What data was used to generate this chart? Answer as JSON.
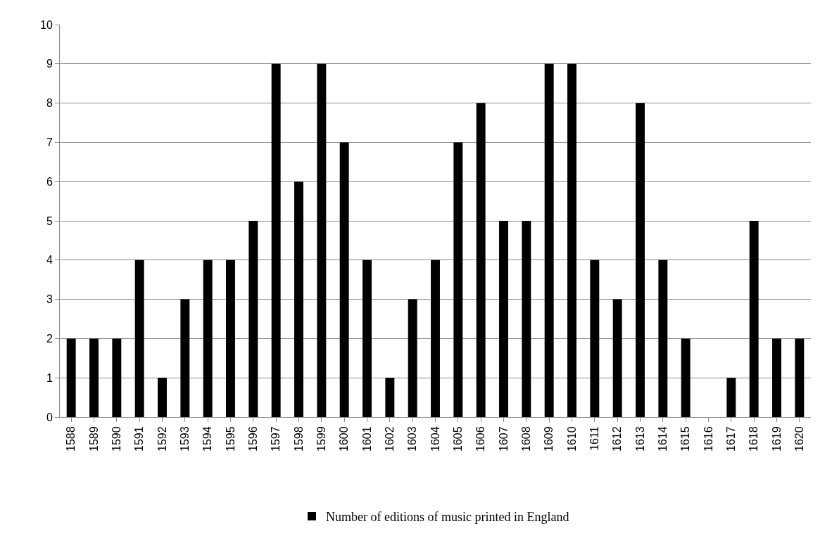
{
  "chart_data": {
    "type": "bar",
    "categories": [
      "1588",
      "1589",
      "1590",
      "1591",
      "1592",
      "1593",
      "1594",
      "1595",
      "1596",
      "1597",
      "1598",
      "1599",
      "1600",
      "1601",
      "1602",
      "1603",
      "1604",
      "1605",
      "1606",
      "1607",
      "1608",
      "1609",
      "1610",
      "1611",
      "1612",
      "1613",
      "1614",
      "1615",
      "1616",
      "1617",
      "1618",
      "1619",
      "1620"
    ],
    "series": [
      {
        "name": "Number of editions of music printed in England",
        "color": "#000000",
        "values": [
          2,
          2,
          2,
          4,
          1,
          3,
          4,
          4,
          5,
          9,
          6,
          9,
          7,
          4,
          1,
          3,
          4,
          7,
          8,
          5,
          5,
          9,
          9,
          4,
          3,
          8,
          4,
          2,
          0,
          1,
          5,
          2,
          2
        ]
      }
    ],
    "ylim": [
      0,
      10
    ],
    "yticks": [
      0,
      1,
      2,
      3,
      4,
      5,
      6,
      7,
      8,
      9,
      10
    ],
    "grid": "y",
    "legend": "bottom"
  }
}
